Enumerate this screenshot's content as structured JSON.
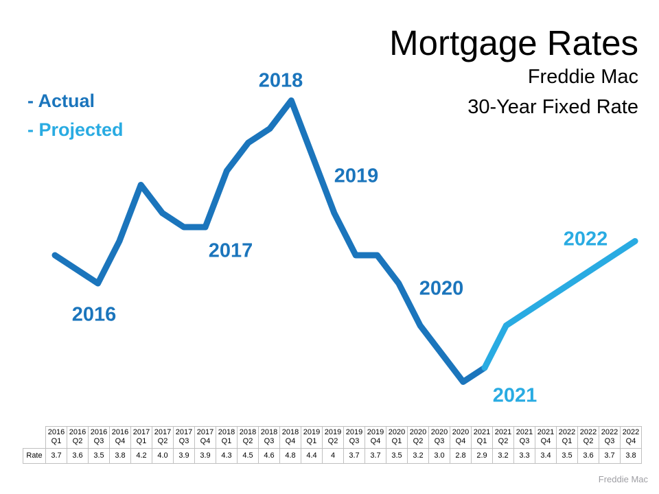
{
  "title": {
    "main": "Mortgage Rates",
    "sub1": "Freddie Mac",
    "sub2": "30-Year Fixed Rate"
  },
  "legend": {
    "actual_label": "- Actual",
    "projected_label": "- Projected"
  },
  "colors": {
    "actual": "#1B75BC",
    "projected": "#29ABE2",
    "table_border": "#BFBFBF",
    "attribution_gray": "#9E9EA3"
  },
  "attribution": "Freddie Mac",
  "chart_data": {
    "type": "line",
    "title": "Mortgage Rates — Freddie Mac 30-Year Fixed Rate",
    "xlabel": "",
    "ylabel": "Rate (%)",
    "ylim": [
      2.8,
      4.8
    ],
    "grid": false,
    "axes_visible": false,
    "legend_position": "top-left",
    "x": [
      "2016 Q1",
      "2016 Q2",
      "2016 Q3",
      "2016 Q4",
      "2017 Q1",
      "2017 Q2",
      "2017 Q3",
      "2017 Q4",
      "2018 Q1",
      "2018 Q2",
      "2018 Q3",
      "2018 Q4",
      "2019 Q1",
      "2019 Q2",
      "2019 Q3",
      "2019 Q4",
      "2020 Q1",
      "2020 Q2",
      "2020 Q3",
      "2020 Q4",
      "2021 Q1",
      "2021 Q2",
      "2021 Q3",
      "2021 Q4",
      "2022 Q1",
      "2022 Q2",
      "2022 Q3",
      "2022 Q4"
    ],
    "series": [
      {
        "name": "Actual",
        "color": "#1B75BC",
        "x": [
          "2016 Q1",
          "2016 Q2",
          "2016 Q3",
          "2016 Q4",
          "2017 Q1",
          "2017 Q2",
          "2017 Q3",
          "2017 Q4",
          "2018 Q1",
          "2018 Q2",
          "2018 Q3",
          "2018 Q4",
          "2019 Q1",
          "2019 Q2",
          "2019 Q3",
          "2019 Q4",
          "2020 Q1",
          "2020 Q2",
          "2020 Q3",
          "2020 Q4",
          "2021 Q1"
        ],
        "values": [
          3.7,
          3.6,
          3.5,
          3.8,
          4.2,
          4.0,
          3.9,
          3.9,
          4.3,
          4.5,
          4.6,
          4.8,
          4.4,
          4.0,
          3.7,
          3.7,
          3.5,
          3.2,
          3.0,
          2.8,
          2.9
        ]
      },
      {
        "name": "Projected",
        "color": "#29ABE2",
        "x": [
          "2021 Q1",
          "2021 Q2",
          "2021 Q3",
          "2021 Q4",
          "2022 Q1",
          "2022 Q2",
          "2022 Q3",
          "2022 Q4"
        ],
        "values": [
          2.9,
          3.2,
          3.3,
          3.4,
          3.5,
          3.6,
          3.7,
          3.8
        ]
      }
    ],
    "annotations": [
      {
        "text": "2016",
        "series": "actual"
      },
      {
        "text": "2017",
        "series": "actual"
      },
      {
        "text": "2018",
        "series": "actual"
      },
      {
        "text": "2019",
        "series": "actual"
      },
      {
        "text": "2020",
        "series": "actual"
      },
      {
        "text": "2021",
        "series": "projected"
      },
      {
        "text": "2022",
        "series": "projected"
      }
    ]
  },
  "table": {
    "row_header": "Rate",
    "columns": [
      {
        "year": "2016",
        "quarter": "Q1",
        "rate": "3.7"
      },
      {
        "year": "2016",
        "quarter": "Q2",
        "rate": "3.6"
      },
      {
        "year": "2016",
        "quarter": "Q3",
        "rate": "3.5"
      },
      {
        "year": "2016",
        "quarter": "Q4",
        "rate": "3.8"
      },
      {
        "year": "2017",
        "quarter": "Q1",
        "rate": "4.2"
      },
      {
        "year": "2017",
        "quarter": "Q2",
        "rate": "4.0"
      },
      {
        "year": "2017",
        "quarter": "Q3",
        "rate": "3.9"
      },
      {
        "year": "2017",
        "quarter": "Q4",
        "rate": "3.9"
      },
      {
        "year": "2018",
        "quarter": "Q1",
        "rate": "4.3"
      },
      {
        "year": "2018",
        "quarter": "Q2",
        "rate": "4.5"
      },
      {
        "year": "2018",
        "quarter": "Q3",
        "rate": "4.6"
      },
      {
        "year": "2018",
        "quarter": "Q4",
        "rate": "4.8"
      },
      {
        "year": "2019",
        "quarter": "Q1",
        "rate": "4.4"
      },
      {
        "year": "2019",
        "quarter": "Q2",
        "rate": "4"
      },
      {
        "year": "2019",
        "quarter": "Q3",
        "rate": "3.7"
      },
      {
        "year": "2019",
        "quarter": "Q4",
        "rate": "3.7"
      },
      {
        "year": "2020",
        "quarter": "Q1",
        "rate": "3.5"
      },
      {
        "year": "2020",
        "quarter": "Q2",
        "rate": "3.2"
      },
      {
        "year": "2020",
        "quarter": "Q3",
        "rate": "3.0"
      },
      {
        "year": "2020",
        "quarter": "Q4",
        "rate": "2.8"
      },
      {
        "year": "2021",
        "quarter": "Q1",
        "rate": "2.9"
      },
      {
        "year": "2021",
        "quarter": "Q2",
        "rate": "3.2"
      },
      {
        "year": "2021",
        "quarter": "Q3",
        "rate": "3.3"
      },
      {
        "year": "2021",
        "quarter": "Q4",
        "rate": "3.4"
      },
      {
        "year": "2022",
        "quarter": "Q1",
        "rate": "3.5"
      },
      {
        "year": "2022",
        "quarter": "Q2",
        "rate": "3.6"
      },
      {
        "year": "2022",
        "quarter": "Q3",
        "rate": "3.7"
      },
      {
        "year": "2022",
        "quarter": "Q4",
        "rate": "3.8"
      }
    ]
  }
}
